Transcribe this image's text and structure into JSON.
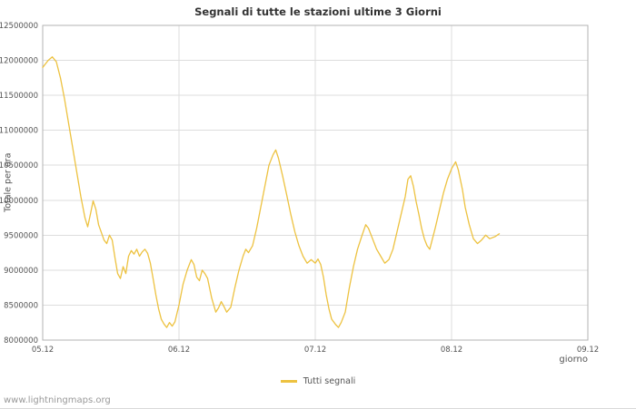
{
  "chart": {
    "title": "Segnali di tutte le stazioni ultime 3 Giorni",
    "ylabel": "Totale per ora",
    "xlabel": "giorno",
    "legend": "Tutti segnali"
  },
  "footer": {
    "watermark": "www.lightningmaps.org"
  },
  "colors": {
    "line": "#edc240",
    "grid": "#dddddd",
    "border": "#b3b3b3",
    "tick_text": "#545454",
    "title_text": "#333333",
    "watermark_text": "#999999"
  },
  "chart_data": {
    "type": "line",
    "title": "Segnali di tutte le stazioni ultime 3 Giorni",
    "xlabel": "giorno",
    "ylabel": "Totale per ora",
    "legend_position": "bottom-center",
    "grid": true,
    "xlim": [
      0,
      4
    ],
    "ylim": [
      8000000,
      12500000
    ],
    "x_ticks": [
      {
        "value": 0,
        "label": "05.12"
      },
      {
        "value": 1,
        "label": "06.12"
      },
      {
        "value": 2,
        "label": "07.12"
      },
      {
        "value": 3,
        "label": "08.12"
      },
      {
        "value": 4,
        "label": "09.12"
      }
    ],
    "y_ticks": [
      {
        "value": 8000000,
        "label": "8000000"
      },
      {
        "value": 8500000,
        "label": "8500000"
      },
      {
        "value": 9000000,
        "label": "9000000"
      },
      {
        "value": 9500000,
        "label": "9500000"
      },
      {
        "value": 10000000,
        "label": "10000000"
      },
      {
        "value": 10500000,
        "label": "10500000"
      },
      {
        "value": 11000000,
        "label": "11000000"
      },
      {
        "value": 11500000,
        "label": "11500000"
      },
      {
        "value": 12000000,
        "label": "12000000"
      },
      {
        "value": 12500000,
        "label": "12500000"
      }
    ],
    "series": [
      {
        "name": "Tutti segnali",
        "color": "#edc240",
        "points": [
          [
            0.0,
            11900000
          ],
          [
            0.04,
            12000000
          ],
          [
            0.07,
            12050000
          ],
          [
            0.1,
            11980000
          ],
          [
            0.13,
            11750000
          ],
          [
            0.16,
            11450000
          ],
          [
            0.19,
            11100000
          ],
          [
            0.22,
            10750000
          ],
          [
            0.25,
            10400000
          ],
          [
            0.28,
            10050000
          ],
          [
            0.31,
            9750000
          ],
          [
            0.33,
            9620000
          ],
          [
            0.35,
            9800000
          ],
          [
            0.37,
            9990000
          ],
          [
            0.39,
            9870000
          ],
          [
            0.41,
            9650000
          ],
          [
            0.43,
            9540000
          ],
          [
            0.45,
            9430000
          ],
          [
            0.47,
            9380000
          ],
          [
            0.49,
            9500000
          ],
          [
            0.51,
            9430000
          ],
          [
            0.53,
            9180000
          ],
          [
            0.55,
            8950000
          ],
          [
            0.57,
            8880000
          ],
          [
            0.59,
            9050000
          ],
          [
            0.61,
            8950000
          ],
          [
            0.63,
            9200000
          ],
          [
            0.65,
            9280000
          ],
          [
            0.67,
            9230000
          ],
          [
            0.69,
            9300000
          ],
          [
            0.71,
            9200000
          ],
          [
            0.73,
            9260000
          ],
          [
            0.75,
            9300000
          ],
          [
            0.77,
            9240000
          ],
          [
            0.79,
            9100000
          ],
          [
            0.81,
            8880000
          ],
          [
            0.83,
            8650000
          ],
          [
            0.85,
            8450000
          ],
          [
            0.87,
            8300000
          ],
          [
            0.89,
            8230000
          ],
          [
            0.91,
            8180000
          ],
          [
            0.93,
            8250000
          ],
          [
            0.95,
            8200000
          ],
          [
            0.97,
            8260000
          ],
          [
            1.0,
            8500000
          ],
          [
            1.03,
            8800000
          ],
          [
            1.06,
            9000000
          ],
          [
            1.09,
            9150000
          ],
          [
            1.11,
            9080000
          ],
          [
            1.13,
            8900000
          ],
          [
            1.15,
            8850000
          ],
          [
            1.17,
            9000000
          ],
          [
            1.19,
            8950000
          ],
          [
            1.21,
            8880000
          ],
          [
            1.24,
            8600000
          ],
          [
            1.27,
            8400000
          ],
          [
            1.29,
            8460000
          ],
          [
            1.31,
            8550000
          ],
          [
            1.33,
            8480000
          ],
          [
            1.35,
            8400000
          ],
          [
            1.38,
            8470000
          ],
          [
            1.41,
            8750000
          ],
          [
            1.44,
            9000000
          ],
          [
            1.47,
            9200000
          ],
          [
            1.49,
            9300000
          ],
          [
            1.51,
            9250000
          ],
          [
            1.54,
            9350000
          ],
          [
            1.57,
            9600000
          ],
          [
            1.6,
            9900000
          ],
          [
            1.63,
            10200000
          ],
          [
            1.66,
            10500000
          ],
          [
            1.69,
            10650000
          ],
          [
            1.71,
            10720000
          ],
          [
            1.73,
            10600000
          ],
          [
            1.76,
            10350000
          ],
          [
            1.79,
            10080000
          ],
          [
            1.82,
            9800000
          ],
          [
            1.85,
            9550000
          ],
          [
            1.88,
            9350000
          ],
          [
            1.91,
            9200000
          ],
          [
            1.94,
            9100000
          ],
          [
            1.97,
            9150000
          ],
          [
            2.0,
            9100000
          ],
          [
            2.02,
            9160000
          ],
          [
            2.04,
            9080000
          ],
          [
            2.06,
            8900000
          ],
          [
            2.08,
            8650000
          ],
          [
            2.1,
            8450000
          ],
          [
            2.12,
            8300000
          ],
          [
            2.15,
            8220000
          ],
          [
            2.17,
            8180000
          ],
          [
            2.19,
            8250000
          ],
          [
            2.22,
            8400000
          ],
          [
            2.25,
            8750000
          ],
          [
            2.28,
            9050000
          ],
          [
            2.31,
            9300000
          ],
          [
            2.34,
            9480000
          ],
          [
            2.37,
            9650000
          ],
          [
            2.39,
            9600000
          ],
          [
            2.42,
            9450000
          ],
          [
            2.45,
            9300000
          ],
          [
            2.48,
            9200000
          ],
          [
            2.51,
            9100000
          ],
          [
            2.54,
            9150000
          ],
          [
            2.57,
            9300000
          ],
          [
            2.6,
            9550000
          ],
          [
            2.63,
            9800000
          ],
          [
            2.66,
            10050000
          ],
          [
            2.68,
            10300000
          ],
          [
            2.7,
            10350000
          ],
          [
            2.72,
            10200000
          ],
          [
            2.74,
            9980000
          ],
          [
            2.76,
            9800000
          ],
          [
            2.78,
            9600000
          ],
          [
            2.8,
            9450000
          ],
          [
            2.82,
            9350000
          ],
          [
            2.84,
            9300000
          ],
          [
            2.86,
            9450000
          ],
          [
            2.88,
            9600000
          ],
          [
            2.91,
            9850000
          ],
          [
            2.94,
            10100000
          ],
          [
            2.97,
            10300000
          ],
          [
            3.0,
            10450000
          ],
          [
            3.03,
            10550000
          ],
          [
            3.05,
            10430000
          ],
          [
            3.08,
            10150000
          ],
          [
            3.1,
            9900000
          ],
          [
            3.13,
            9650000
          ],
          [
            3.16,
            9450000
          ],
          [
            3.19,
            9380000
          ],
          [
            3.22,
            9430000
          ],
          [
            3.25,
            9500000
          ],
          [
            3.28,
            9450000
          ],
          [
            3.32,
            9480000
          ],
          [
            3.35,
            9520000
          ]
        ]
      }
    ]
  }
}
